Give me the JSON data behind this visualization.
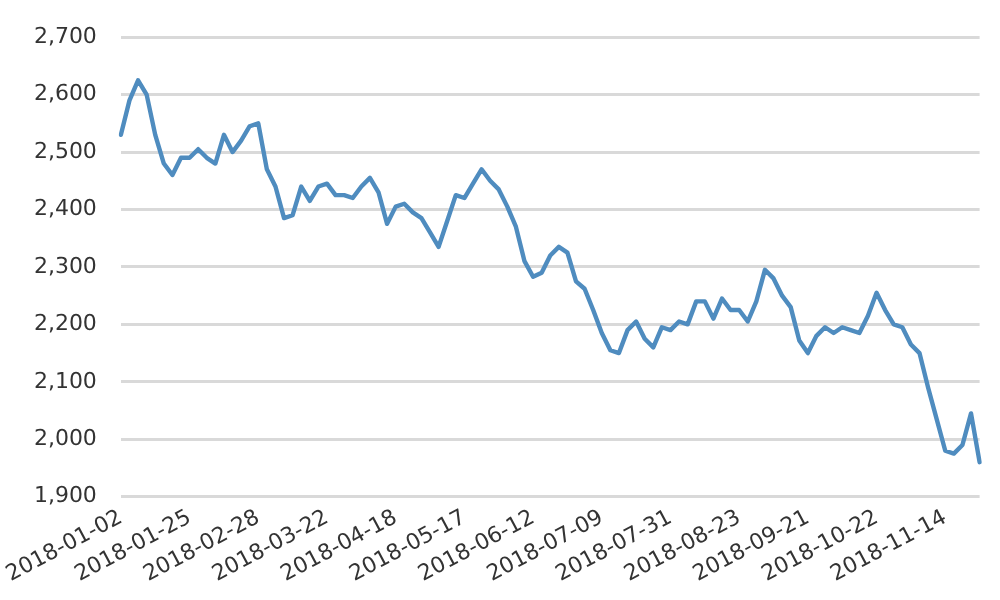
{
  "chart_data": {
    "type": "line",
    "categories": [
      "2018-01-02",
      null,
      null,
      null,
      null,
      null,
      null,
      null,
      "2018-01-25",
      null,
      null,
      null,
      null,
      null,
      null,
      null,
      "2018-02-28",
      null,
      null,
      null,
      null,
      null,
      null,
      null,
      "2018-03-22",
      null,
      null,
      null,
      null,
      null,
      null,
      null,
      "2018-04-18",
      null,
      null,
      null,
      null,
      null,
      null,
      null,
      "2018-05-17",
      null,
      null,
      null,
      null,
      null,
      null,
      null,
      "2018-06-12",
      null,
      null,
      null,
      null,
      null,
      null,
      null,
      "2018-07-09",
      null,
      null,
      null,
      null,
      null,
      null,
      null,
      "2018-07-31",
      null,
      null,
      null,
      null,
      null,
      null,
      null,
      "2018-08-23",
      null,
      null,
      null,
      null,
      null,
      null,
      null,
      "2018-09-21",
      null,
      null,
      null,
      null,
      null,
      null,
      null,
      "2018-10-22",
      null,
      null,
      null,
      null,
      null,
      null,
      null,
      "2018-11-14",
      null,
      null,
      null,
      null
    ],
    "series": [
      {
        "color": "#4f8cbf",
        "values": [
          2530,
          2590,
          2625,
          2600,
          2530,
          2480,
          2460,
          2490,
          2490,
          2505,
          2490,
          2480,
          2530,
          2500,
          2520,
          2545,
          2550,
          2470,
          2440,
          2385,
          2390,
          2440,
          2415,
          2440,
          2445,
          2425,
          2425,
          2420,
          2440,
          2455,
          2430,
          2375,
          2405,
          2410,
          2395,
          2385,
          2360,
          2335,
          2380,
          2425,
          2420,
          2445,
          2470,
          2450,
          2435,
          2405,
          2370,
          2310,
          2283,
          2290,
          2320,
          2335,
          2325,
          2275,
          2262,
          2225,
          2185,
          2155,
          2150,
          2190,
          2205,
          2175,
          2160,
          2195,
          2190,
          2205,
          2200,
          2240,
          2240,
          2210,
          2245,
          2225,
          2225,
          2205,
          2240,
          2295,
          2280,
          2250,
          2230,
          2172,
          2150,
          2180,
          2195,
          2185,
          2195,
          2190,
          2185,
          2215,
          2255,
          2225,
          2200,
          2195,
          2165,
          2150,
          2090,
          2035,
          1980,
          1975,
          1990,
          2045,
          1960
        ]
      }
    ],
    "ylim": [
      1900,
      2700
    ],
    "yticks": [
      {
        "value": 1900,
        "label": "1,900"
      },
      {
        "value": 2000,
        "label": "2,000"
      },
      {
        "value": 2100,
        "label": "2,100"
      },
      {
        "value": 2200,
        "label": "2,200"
      },
      {
        "value": 2300,
        "label": "2,300"
      },
      {
        "value": 2400,
        "label": "2,400"
      },
      {
        "value": 2500,
        "label": "2,500"
      },
      {
        "value": 2600,
        "label": "2,600"
      },
      {
        "value": 2700,
        "label": "2,700"
      }
    ],
    "grid": "y",
    "legend": false,
    "marker": "none",
    "line_style": "solid"
  }
}
